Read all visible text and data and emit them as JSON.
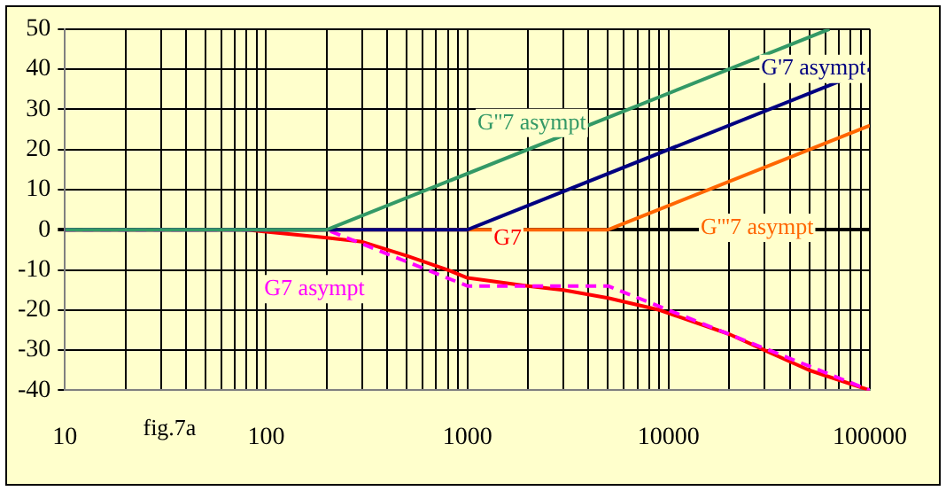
{
  "chart_data": {
    "type": "line",
    "log": "x",
    "grid": true,
    "legend": false,
    "marker": "none",
    "xlim": [
      10,
      100000
    ],
    "ylim": [
      -40,
      50
    ],
    "xticks": [
      10,
      {
        "value": 20,
        "label": null
      },
      {
        "value": 30,
        "label": null
      },
      {
        "value": 40,
        "label": null
      },
      {
        "value": 50,
        "label": null
      },
      {
        "value": 60,
        "label": null
      },
      {
        "value": 70,
        "label": null
      },
      {
        "value": 80,
        "label": null
      },
      {
        "value": 90,
        "label": null
      },
      100,
      {
        "value": 200,
        "label": null
      },
      {
        "value": 300,
        "label": null
      },
      {
        "value": 400,
        "label": null
      },
      {
        "value": 500,
        "label": null
      },
      {
        "value": 600,
        "label": null
      },
      {
        "value": 700,
        "label": null
      },
      {
        "value": 800,
        "label": null
      },
      {
        "value": 900,
        "label": null
      },
      1000,
      {
        "value": 2000,
        "label": null
      },
      {
        "value": 3000,
        "label": null
      },
      {
        "value": 4000,
        "label": null
      },
      {
        "value": 5000,
        "label": null
      },
      {
        "value": 6000,
        "label": null
      },
      {
        "value": 7000,
        "label": null
      },
      {
        "value": 8000,
        "label": null
      },
      {
        "value": 9000,
        "label": null
      },
      10000,
      {
        "value": 20000,
        "label": null
      },
      {
        "value": 30000,
        "label": null
      },
      {
        "value": 40000,
        "label": null
      },
      {
        "value": 50000,
        "label": null
      },
      {
        "value": 60000,
        "label": null
      },
      {
        "value": 70000,
        "label": null
      },
      {
        "value": 80000,
        "label": null
      },
      {
        "value": 90000,
        "label": null
      },
      100000
    ],
    "yticks": [
      -40,
      -30,
      -20,
      -10,
      0,
      10,
      20,
      30,
      40,
      50
    ],
    "series": [
      {
        "name": "G''7 asympt",
        "color": "#339966",
        "x": [
          10,
          200,
          63000
        ],
        "values": [
          0,
          0,
          50
        ]
      },
      {
        "name": "G'7 asympt",
        "color": "#000080",
        "x": [
          10,
          1000,
          100000
        ],
        "values": [
          0,
          0,
          40
        ]
      },
      {
        "name": "G'''7 asympt",
        "color": "#ff6600",
        "x": [
          100,
          5000,
          100000
        ],
        "values": [
          0,
          0,
          26
        ]
      },
      {
        "name": "G7 asympt",
        "color": "#ff00ff",
        "line_style": "dashed",
        "x": [
          10,
          200,
          1000,
          5000,
          100000
        ],
        "values": [
          0,
          0,
          -14,
          -14,
          -40
        ]
      },
      {
        "name": "G7",
        "color": "#ff0000",
        "x": [
          10,
          80,
          100,
          200,
          300,
          500,
          800,
          1000,
          2000,
          3000,
          5000,
          9000,
          20000,
          30000,
          50000,
          100000
        ],
        "values": [
          0,
          0,
          -0.5,
          -2,
          -3,
          -6.5,
          -10,
          -12,
          -14,
          -15,
          -17,
          -20,
          -26,
          -30,
          -35,
          -40
        ]
      }
    ],
    "annotations": [
      "fig.7a"
    ]
  }
}
